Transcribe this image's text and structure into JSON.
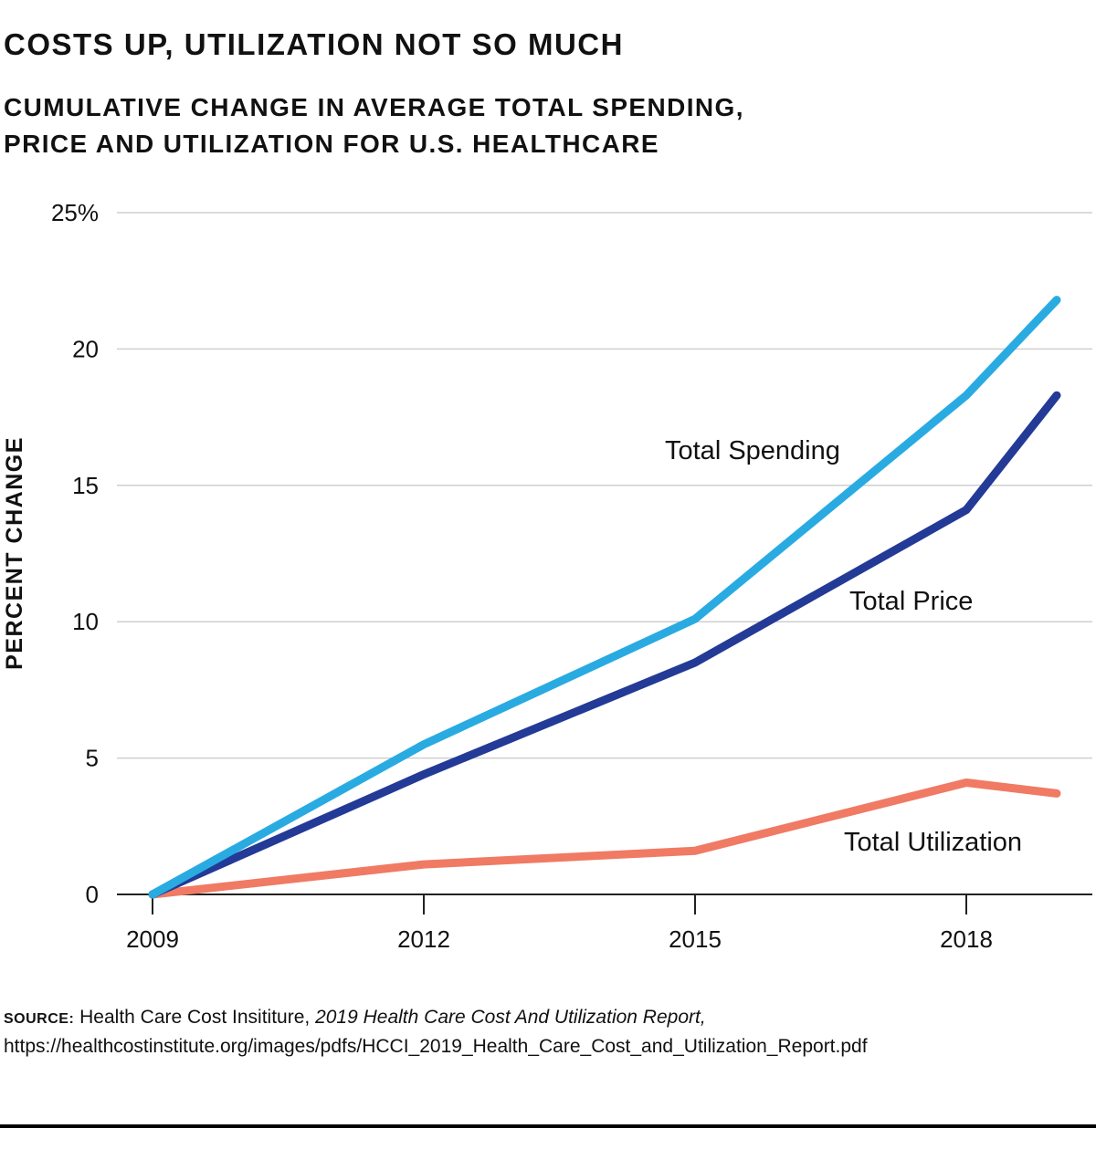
{
  "header": {
    "title": "COSTS UP, UTILIZATION NOT SO MUCH",
    "subtitle_line1": "CUMULATIVE CHANGE IN AVERAGE TOTAL SPENDING,",
    "subtitle_line2": "PRICE AND UTILIZATION FOR U.S. HEALTHCARE"
  },
  "chart_data": {
    "type": "line",
    "ylabel": "PERCENT CHANGE",
    "xlabel": "",
    "ylim": [
      0,
      25
    ],
    "xlim": [
      2009,
      2019
    ],
    "grid": true,
    "y_ticks": [
      {
        "value": 0,
        "label": "0"
      },
      {
        "value": 5,
        "label": "5"
      },
      {
        "value": 10,
        "label": "10"
      },
      {
        "value": 15,
        "label": "15"
      },
      {
        "value": 20,
        "label": "20"
      },
      {
        "value": 25,
        "label": "25%"
      }
    ],
    "x_ticks": [
      {
        "value": 2009,
        "label": "2009"
      },
      {
        "value": 2012,
        "label": "2012"
      },
      {
        "value": 2015,
        "label": "2015"
      },
      {
        "value": 2018,
        "label": "2018"
      }
    ],
    "series": [
      {
        "name": "Total Spending",
        "color": "#29ABE2",
        "x": [
          2009,
          2012,
          2015,
          2018,
          2019
        ],
        "values": [
          0,
          5.5,
          10.1,
          18.3,
          21.8
        ]
      },
      {
        "name": "Total Price",
        "color": "#233A96",
        "x": [
          2009,
          2012,
          2015,
          2018,
          2019
        ],
        "values": [
          0,
          4.4,
          8.5,
          14.1,
          18.3
        ]
      },
      {
        "name": "Total Utilization",
        "color": "#F07A63",
        "x": [
          2009,
          2012,
          2015,
          2018,
          2019
        ],
        "values": [
          0,
          1.1,
          1.6,
          4.1,
          3.7
        ]
      }
    ],
    "annotations": [
      {
        "text": "Total Spending",
        "series": "Total Spending"
      },
      {
        "text": "Total Price",
        "series": "Total Price"
      },
      {
        "text": "Total Utilization",
        "series": "Total Utilization"
      }
    ]
  },
  "source": {
    "label": "SOURCE:",
    "org": "Health Care Cost Insititure, ",
    "report": "2019 Health Care Cost And Utilization Report,",
    "url": "https://healthcostinstitute.org/images/pdfs/HCCI_2019_Health_Care_Cost_and_Utilization_Report.pdf"
  },
  "colors": {
    "spending": "#29ABE2",
    "price": "#233A96",
    "utilization": "#F07A63",
    "grid": "#cfcfcf",
    "axis": "#222222"
  }
}
